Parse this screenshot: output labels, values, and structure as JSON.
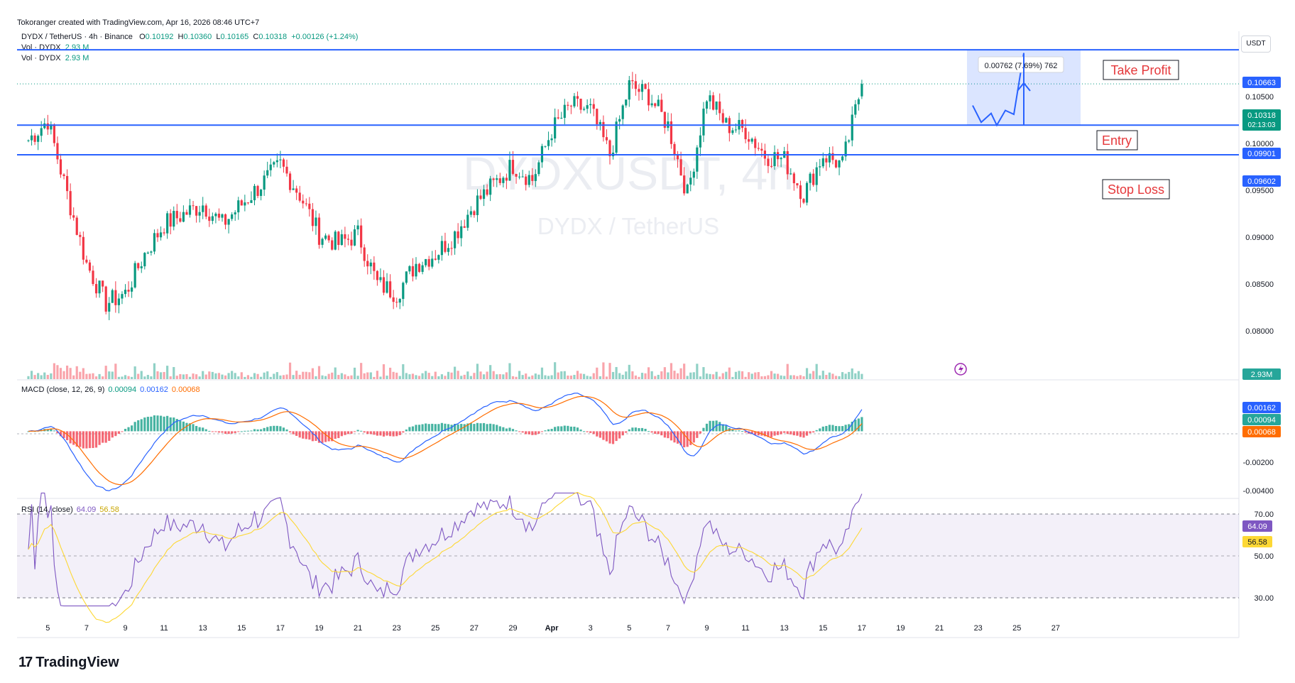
{
  "header": {
    "attribution": "Tokoranger created with TradingView.com, Apr 16, 2026 08:46 UTC+7"
  },
  "symbol_line": {
    "symbol": "DYDX / TetherUS · 4h · Binance",
    "o_label": "O",
    "o": "0.10192",
    "h_label": "H",
    "h": "0.10360",
    "l_label": "L",
    "l": "0.10165",
    "c_label": "C",
    "c": "0.10318",
    "change": "+0.00126 (+1.24%)"
  },
  "volume_legends": [
    {
      "label": "Vol · DYDX",
      "value": "2.93 M"
    },
    {
      "label": "Vol · DYDX",
      "value": "2.93 M"
    }
  ],
  "watermark": {
    "ticker": "DYDXUSDT, 4h",
    "name": "DYDX / TetherUS"
  },
  "currency_unit": "USDT",
  "price_axis": [
    "0.10500",
    "0.10000",
    "0.09500",
    "0.09000",
    "0.08500",
    "0.08000"
  ],
  "price_badges": {
    "take_profit": "0.10663",
    "current": "0.10318",
    "countdown": "02:13:03",
    "entry": "0.09901",
    "stop_loss": "0.09602",
    "volume": "2.93M"
  },
  "annotations": {
    "take_profit": "Take Profit",
    "entry": "Entry",
    "stop_loss": "Stop Loss",
    "measure": "0.00762 (7.69%) 762"
  },
  "macd": {
    "label": "MACD (close, 12, 26, 9)",
    "hist": "0.00094",
    "macd": "0.00162",
    "signal": "0.00068",
    "axis": [
      "-0.00200",
      "-0.00400"
    ]
  },
  "rsi": {
    "label": "RSI (14, close)",
    "rsi": "64.09",
    "ma": "56.58",
    "axis": [
      "70.00",
      "50.00",
      "30.00"
    ]
  },
  "time_axis": [
    "5",
    "7",
    "9",
    "11",
    "13",
    "15",
    "17",
    "19",
    "21",
    "23",
    "25",
    "27",
    "29",
    "Apr",
    "3",
    "5",
    "7",
    "9",
    "11",
    "13",
    "15",
    "17",
    "19",
    "21",
    "23",
    "25",
    "27"
  ],
  "brand": "TradingView",
  "colors": {
    "up": "#089981",
    "down": "#f23645",
    "level_line": "#2962ff",
    "macd_line": "#2962ff",
    "signal_line": "#ff6d00",
    "rsi_line": "#7e57c2",
    "rsi_ma": "#fdd835",
    "annotation_text": "#e5383b"
  },
  "chart_data": [
    {
      "type": "candlestick",
      "title": "DYDX / TetherUS · 4h · Binance",
      "ylim": [
        0.0765,
        0.1085
      ],
      "x_start": "Mar 4, 2026",
      "x_end": "Apr 16, 2026",
      "levels": {
        "take_profit": 0.10663,
        "entry": 0.09901,
        "stop_loss": 0.09602
      },
      "last": {
        "open": 0.10192,
        "high": 0.1036,
        "low": 0.10165,
        "close": 0.10318
      },
      "close_path_by_day": [
        {
          "x": "Mar 4",
          "y": 0.0975
        },
        {
          "x": "Mar 5",
          "y": 0.0995
        },
        {
          "x": "Mar 6",
          "y": 0.092
        },
        {
          "x": "Mar 7",
          "y": 0.085
        },
        {
          "x": "Mar 8",
          "y": 0.081
        },
        {
          "x": "Mar 9",
          "y": 0.082
        },
        {
          "x": "Mar 10",
          "y": 0.086
        },
        {
          "x": "Mar 11",
          "y": 0.089
        },
        {
          "x": "Mar 12",
          "y": 0.09
        },
        {
          "x": "Mar 13",
          "y": 0.091
        },
        {
          "x": "Mar 14",
          "y": 0.089
        },
        {
          "x": "Mar 15",
          "y": 0.091
        },
        {
          "x": "Mar 16",
          "y": 0.093
        },
        {
          "x": "Mar 17",
          "y": 0.095
        },
        {
          "x": "Mar 18",
          "y": 0.092
        },
        {
          "x": "Mar 19",
          "y": 0.088
        },
        {
          "x": "Mar 20",
          "y": 0.087
        },
        {
          "x": "Mar 21",
          "y": 0.088
        },
        {
          "x": "Mar 22",
          "y": 0.083
        },
        {
          "x": "Mar 23",
          "y": 0.082
        },
        {
          "x": "Mar 24",
          "y": 0.085
        },
        {
          "x": "Mar 25",
          "y": 0.086
        },
        {
          "x": "Mar 26",
          "y": 0.088
        },
        {
          "x": "Mar 27",
          "y": 0.091
        },
        {
          "x": "Mar 28",
          "y": 0.093
        },
        {
          "x": "Mar 29",
          "y": 0.095
        },
        {
          "x": "Mar 30",
          "y": 0.0935
        },
        {
          "x": "Mar 31",
          "y": 0.0985
        },
        {
          "x": "Apr 1",
          "y": 0.101
        },
        {
          "x": "Apr 2",
          "y": 0.1005
        },
        {
          "x": "Apr 3",
          "y": 0.096
        },
        {
          "x": "Apr 4",
          "y": 0.103
        },
        {
          "x": "Apr 5",
          "y": 0.102
        },
        {
          "x": "Apr 6",
          "y": 0.099
        },
        {
          "x": "Apr 7",
          "y": 0.092
        },
        {
          "x": "Apr 8",
          "y": 0.102
        },
        {
          "x": "Apr 9",
          "y": 0.099
        },
        {
          "x": "Apr 10",
          "y": 0.0985
        },
        {
          "x": "Apr 11",
          "y": 0.096
        },
        {
          "x": "Apr 12",
          "y": 0.0955
        },
        {
          "x": "Apr 13",
          "y": 0.092
        },
        {
          "x": "Apr 14",
          "y": 0.096
        },
        {
          "x": "Apr 15",
          "y": 0.095
        },
        {
          "x": "Apr 16",
          "y": 0.10318
        }
      ]
    },
    {
      "type": "line",
      "title": "MACD (close, 12, 26, 9)",
      "series": [
        {
          "name": "MACD"
        },
        {
          "name": "Signal"
        },
        {
          "name": "Histogram"
        }
      ],
      "ylim": [
        -0.0045,
        0.0025
      ],
      "last": {
        "macd": 0.00162,
        "signal": 0.00068,
        "histogram": 0.00094
      }
    },
    {
      "type": "line",
      "title": "RSI (14, close)",
      "ylim": [
        22,
        72
      ],
      "bands": [
        70,
        50,
        30
      ],
      "last": {
        "rsi": 64.09,
        "ma": 56.58
      }
    }
  ]
}
